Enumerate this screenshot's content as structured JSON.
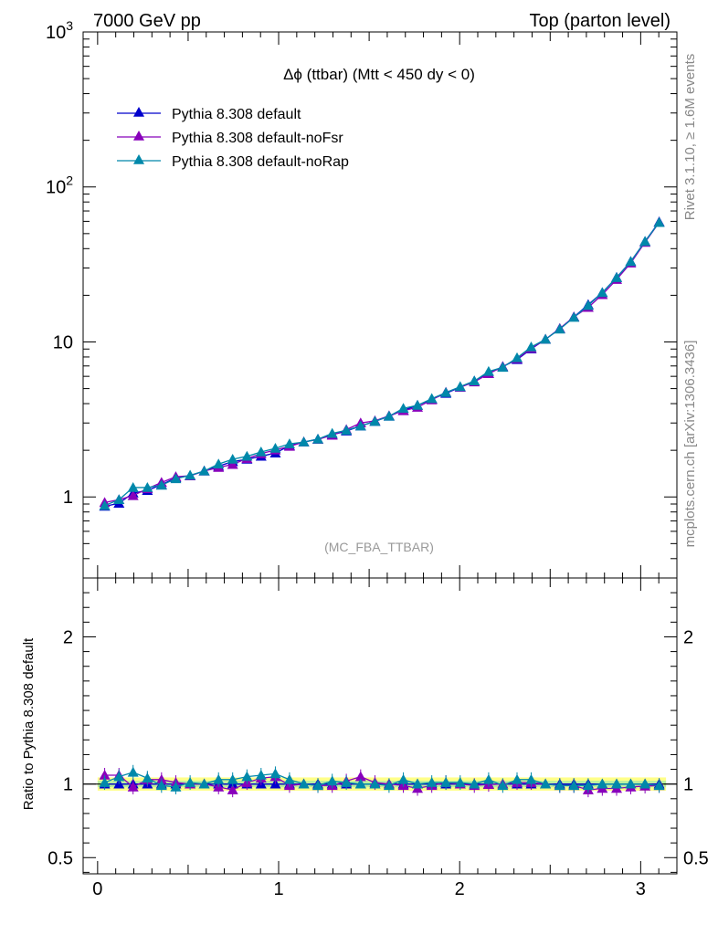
{
  "header": {
    "left": "7000 GeV pp",
    "right": "Top (parton level)"
  },
  "side_labels": {
    "rivet": "Rivet 3.1.10, ≥ 1.6M events",
    "mcplots": "mcplots.cern.ch [arXiv:1306.3436]"
  },
  "chart_data": {
    "type": "line",
    "title": "Δϕ (ttbar) (Mtt < 450 dy < 0)",
    "watermark": "(MC_FBA_TTBAR)",
    "xlabel": "",
    "ylabel": "",
    "ratio_ylabel": "Ratio to Pythia 8.308 default",
    "xlim": [
      -0.08,
      3.2
    ],
    "ylim": [
      0.3,
      1000
    ],
    "yscale": "log",
    "ratio_ylim": [
      0.39,
      2.4
    ],
    "x_ticks": [
      "0",
      "1",
      "2",
      "3"
    ],
    "y_ticks": [
      "1",
      "10",
      "10^2",
      "10^3"
    ],
    "ratio_ticks": [
      "0.5",
      "1",
      "2"
    ],
    "legend_position": "top-left",
    "x": [
      0.039,
      0.118,
      0.196,
      0.275,
      0.353,
      0.432,
      0.511,
      0.589,
      0.668,
      0.746,
      0.825,
      0.903,
      0.982,
      1.06,
      1.139,
      1.217,
      1.296,
      1.374,
      1.453,
      1.532,
      1.61,
      1.689,
      1.767,
      1.846,
      1.924,
      2.003,
      2.081,
      2.16,
      2.238,
      2.317,
      2.395,
      2.474,
      2.553,
      2.631,
      2.71,
      2.788,
      2.867,
      2.945,
      3.024,
      3.102
    ],
    "series": [
      {
        "name": "Pythia 8.308 default",
        "color": "#0000cc",
        "values": [
          0.87,
          0.91,
          1.06,
          1.1,
          1.2,
          1.33,
          1.37,
          1.47,
          1.58,
          1.69,
          1.75,
          1.83,
          1.92,
          2.14,
          2.26,
          2.36,
          2.52,
          2.66,
          2.87,
          3.07,
          3.32,
          3.62,
          3.9,
          4.27,
          4.66,
          5.1,
          5.6,
          6.26,
          6.93,
          7.7,
          9.01,
          10.4,
          12.2,
          14.5,
          17.4,
          20.8,
          26.1,
          33.0,
          44.5,
          59.5
        ],
        "ratio": [
          1.0,
          1.0,
          1.0,
          1.0,
          1.0,
          1.0,
          1.0,
          1.0,
          1.0,
          1.0,
          1.0,
          1.0,
          1.0,
          1.0,
          1.0,
          1.0,
          1.0,
          1.0,
          1.0,
          1.0,
          1.0,
          1.0,
          1.0,
          1.0,
          1.0,
          1.0,
          1.0,
          1.0,
          1.0,
          1.0,
          1.0,
          1.0,
          1.0,
          1.0,
          1.0,
          1.0,
          1.0,
          1.0,
          1.0,
          1.0
        ]
      },
      {
        "name": "Pythia 8.308 default-noFsr",
        "color": "#8800bb",
        "values": [
          0.92,
          0.96,
          1.02,
          1.13,
          1.24,
          1.35,
          1.37,
          1.47,
          1.55,
          1.62,
          1.77,
          1.9,
          2.01,
          2.12,
          2.26,
          2.35,
          2.5,
          2.72,
          3.0,
          3.1,
          3.34,
          3.6,
          3.79,
          4.23,
          4.73,
          5.1,
          5.52,
          6.24,
          6.93,
          7.78,
          9.09,
          10.4,
          12.2,
          14.5,
          16.7,
          20.2,
          25.3,
          32.3,
          43.9,
          59.0
        ],
        "ratio": [
          1.06,
          1.06,
          0.98,
          1.03,
          1.03,
          1.01,
          1.0,
          1.0,
          0.98,
          0.96,
          1.01,
          1.04,
          1.05,
          0.99,
          1.0,
          0.99,
          0.99,
          1.02,
          1.05,
          1.01,
          1.0,
          0.99,
          0.97,
          0.99,
          1.01,
          1.0,
          0.99,
          0.997,
          1.0,
          1.01,
          1.01,
          1.0,
          0.99,
          0.99,
          0.96,
          0.97,
          0.97,
          0.98,
          0.986,
          0.99
        ]
      },
      {
        "name": "Pythia 8.308 default-noRap",
        "color": "#0088aa",
        "values": [
          0.88,
          0.96,
          1.15,
          1.15,
          1.19,
          1.31,
          1.38,
          1.47,
          1.63,
          1.75,
          1.83,
          1.95,
          2.06,
          2.2,
          2.26,
          2.36,
          2.57,
          2.69,
          2.87,
          3.07,
          3.32,
          3.73,
          3.9,
          4.31,
          4.71,
          5.15,
          5.6,
          6.45,
          6.86,
          7.9,
          9.28,
          10.4,
          12.1,
          14.4,
          17.2,
          20.8,
          26.0,
          33.0,
          44.5,
          59.0
        ],
        "ratio": [
          1.01,
          1.05,
          1.08,
          1.04,
          0.99,
          0.98,
          1.01,
          1.0,
          1.03,
          1.03,
          1.05,
          1.06,
          1.07,
          1.03,
          1.0,
          0.99,
          1.02,
          1.01,
          1.0,
          1.0,
          0.99,
          1.03,
          1.0,
          1.01,
          1.01,
          1.01,
          1.0,
          1.03,
          0.99,
          1.03,
          1.03,
          1.0,
          0.99,
          0.99,
          0.99,
          1.0,
          1.0,
          1.0,
          1.0,
          0.99
        ]
      }
    ]
  }
}
